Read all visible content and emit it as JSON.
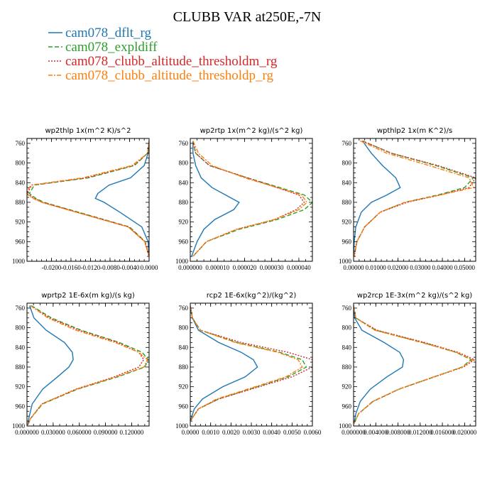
{
  "figure": {
    "title": "CLUBB VAR at250E,-7N"
  },
  "legend": [
    {
      "label": "cam078_dflt_rg",
      "color": "#1f77b4",
      "dash": "solid"
    },
    {
      "label": "cam078_expldiff",
      "color": "#2ca02c",
      "dash": "longdash"
    },
    {
      "label": "cam078_clubb_altitude_thresholdm_rg",
      "color": "#d62728",
      "dash": "dot"
    },
    {
      "label": "cam078_clubb_altitude_thresholdp_rg",
      "color": "#ff7f0e",
      "dash": "dashdot"
    }
  ],
  "chart_data": [
    {
      "type": "line",
      "title": "wp2thlp  1x(m^2 K)/s^2",
      "xlim": [
        -0.025,
        0.0
      ],
      "ylim": [
        1000,
        750
      ],
      "yscale": "linear",
      "y_ticks": [
        760,
        800,
        840,
        880,
        920,
        960,
        1000
      ],
      "x_ticks": [
        -0.02,
        -0.016,
        -0.012,
        -0.008,
        -0.004,
        0.0
      ],
      "x_tick_labels": [
        "-0.0200",
        "-0.0160",
        "-0.0120",
        "-0.0080",
        "-0.0040",
        "0.0000"
      ],
      "y": [
        755,
        780,
        805,
        830,
        845,
        862,
        872,
        880,
        900,
        930,
        960,
        990
      ],
      "series": [
        {
          "values": [
            0,
            -0.0002,
            -0.001,
            -0.0038,
            -0.0082,
            -0.0105,
            -0.011,
            -0.0092,
            -0.006,
            -0.0015,
            -0.0002,
            0
          ]
        },
        {
          "values": [
            0,
            -0.0003,
            -0.003,
            -0.0124,
            -0.0235,
            -0.0245,
            -0.0232,
            -0.0215,
            -0.0145,
            -0.004,
            -0.0008,
            0
          ]
        },
        {
          "values": [
            0,
            -0.0003,
            -0.0032,
            -0.0128,
            -0.024,
            -0.025,
            -0.0235,
            -0.0218,
            -0.0148,
            -0.0042,
            -0.0009,
            0
          ]
        },
        {
          "values": [
            0,
            -0.0003,
            -0.0035,
            -0.0135,
            -0.0242,
            -0.0252,
            -0.0238,
            -0.022,
            -0.015,
            -0.0043,
            -0.0009,
            0
          ]
        }
      ]
    },
    {
      "type": "line",
      "title": "wp2rtp  1x(m^2 kg)/(s^2 kg)",
      "xlim": [
        0.0,
        4.5e-05
      ],
      "ylim": [
        1000,
        750
      ],
      "yscale": "linear",
      "y_ticks": [
        760,
        800,
        840,
        880,
        920,
        960,
        1000
      ],
      "x_ticks": [
        0.0,
        1e-05,
        2e-05,
        3e-05,
        4e-05
      ],
      "x_tick_labels": [
        "0.000000",
        "0.000010",
        "0.000020",
        "0.000030",
        "0.000040"
      ],
      "y": [
        755,
        780,
        805,
        830,
        850,
        865,
        880,
        895,
        915,
        935,
        960,
        990
      ],
      "series": [
        {
          "values": [
            1e-06,
            1e-06,
            2e-06,
            4e-06,
            8e-06,
            1.3e-05,
            1.8e-05,
            1.6e-05,
            9e-06,
            5e-06,
            2.5e-06,
            5e-07
          ]
        },
        {
          "values": [
            1e-06,
            2e-06,
            7e-06,
            2.1e-05,
            3.3e-05,
            4.2e-05,
            4.5e-05,
            4.2e-05,
            3.2e-05,
            1.8e-05,
            6e-06,
            1e-06
          ]
        },
        {
          "values": [
            1e-06,
            2e-06,
            7e-06,
            2.1e-05,
            3.2e-05,
            4e-05,
            4.2e-05,
            3.9e-05,
            3.1e-05,
            1.7e-05,
            6e-06,
            1e-06
          ]
        },
        {
          "values": [
            1e-06,
            3e-06,
            8e-06,
            2e-05,
            3.2e-05,
            4.1e-05,
            4.3e-05,
            4e-05,
            3.1e-05,
            1.7e-05,
            6e-06,
            1e-06
          ]
        }
      ]
    },
    {
      "type": "line",
      "title": "wpthlp2  1x(m K^2)/s",
      "xlim": [
        0.0,
        0.055
      ],
      "ylim": [
        1000,
        750
      ],
      "yscale": "linear",
      "y_ticks": [
        760,
        800,
        840,
        880,
        920,
        960,
        1000
      ],
      "x_ticks": [
        0.0,
        0.01,
        0.02,
        0.03,
        0.04,
        0.05
      ],
      "x_tick_labels": [
        "0.00000",
        "0.01000",
        "0.02000",
        "0.03000",
        "0.04000",
        "0.05000"
      ],
      "y": [
        755,
        780,
        805,
        830,
        850,
        865,
        880,
        900,
        930,
        960,
        990
      ],
      "series": [
        {
          "values": [
            0.004,
            0.008,
            0.013,
            0.019,
            0.021,
            0.015,
            0.008,
            0.0035,
            0.001,
            0.0003,
            0.0001
          ]
        },
        {
          "values": [
            0.004,
            0.017,
            0.037,
            0.054,
            0.05,
            0.038,
            0.023,
            0.012,
            0.005,
            0.0015,
            0.0003
          ]
        },
        {
          "values": [
            0.004,
            0.017,
            0.038,
            0.055,
            0.052,
            0.039,
            0.024,
            0.012,
            0.005,
            0.0015,
            0.0003
          ]
        },
        {
          "values": [
            0.003,
            0.015,
            0.034,
            0.052,
            0.054,
            0.039,
            0.023,
            0.012,
            0.005,
            0.0015,
            0.0003
          ]
        }
      ]
    },
    {
      "type": "line",
      "title": "wprtp2  1E-6x(m kg)/(s kg)",
      "xlim": [
        0.0,
        0.14
      ],
      "ylim": [
        1000,
        750
      ],
      "yscale": "linear",
      "y_ticks": [
        760,
        800,
        840,
        880,
        920,
        960,
        1000
      ],
      "x_ticks": [
        0.0,
        0.03,
        0.06,
        0.09,
        0.12
      ],
      "x_tick_labels": [
        "0.000000",
        "0.030000",
        "0.060000",
        "0.090000",
        "0.120000"
      ],
      "y": [
        755,
        780,
        805,
        830,
        850,
        865,
        880,
        900,
        925,
        955,
        985,
        998
      ],
      "series": [
        {
          "values": [
            0.003,
            0.008,
            0.022,
            0.043,
            0.052,
            0.053,
            0.048,
            0.035,
            0.018,
            0.006,
            0.002,
            0.001
          ]
        },
        {
          "values": [
            0.005,
            0.028,
            0.062,
            0.106,
            0.132,
            0.139,
            0.135,
            0.104,
            0.058,
            0.018,
            0.004,
            0.001
          ]
        },
        {
          "values": [
            0.004,
            0.026,
            0.06,
            0.104,
            0.128,
            0.134,
            0.128,
            0.1,
            0.056,
            0.017,
            0.004,
            0.001
          ]
        },
        {
          "values": [
            0.004,
            0.024,
            0.056,
            0.101,
            0.128,
            0.138,
            0.134,
            0.102,
            0.057,
            0.017,
            0.004,
            0.001
          ]
        }
      ]
    },
    {
      "type": "line",
      "title": "rcp2  1E-6x(kg^2)/(kg^2)",
      "xlim": [
        0.0,
        0.006
      ],
      "ylim": [
        1000,
        750
      ],
      "yscale": "linear",
      "y_ticks": [
        760,
        800,
        840,
        880,
        920,
        960,
        1000
      ],
      "x_ticks": [
        0.0,
        0.001,
        0.002,
        0.003,
        0.004,
        0.005,
        0.006
      ],
      "x_tick_labels": [
        "0.0000",
        "0.0010",
        "0.0020",
        "0.0030",
        "0.0040",
        "0.0050",
        "0.0060"
      ],
      "y": [
        755,
        780,
        805,
        830,
        850,
        865,
        880,
        900,
        920,
        945,
        965,
        990
      ],
      "series": [
        {
          "values": [
            0.0,
            0.0001,
            0.0004,
            0.0014,
            0.0025,
            0.0031,
            0.0033,
            0.0027,
            0.0016,
            0.0006,
            0.0002,
            0.0
          ]
        },
        {
          "values": [
            0.0,
            0.0001,
            0.0005,
            0.0023,
            0.0044,
            0.0055,
            0.0057,
            0.0048,
            0.0033,
            0.0014,
            0.0004,
            0.0
          ]
        },
        {
          "values": [
            0.0,
            0.0001,
            0.0005,
            0.0025,
            0.0048,
            0.006,
            0.006,
            0.005,
            0.0034,
            0.0014,
            0.0004,
            0.0
          ]
        },
        {
          "values": [
            0.0,
            0.0001,
            0.0005,
            0.0022,
            0.0043,
            0.0053,
            0.0055,
            0.0047,
            0.0032,
            0.0013,
            0.0004,
            0.0
          ]
        }
      ]
    },
    {
      "type": "line",
      "title": "wp2rcp  1E-3x(m^2 kg)/(s^2 kg)",
      "xlim": [
        0.0,
        0.022
      ],
      "ylim": [
        1000,
        750
      ],
      "yscale": "linear",
      "y_ticks": [
        760,
        800,
        840,
        880,
        920,
        960,
        1000
      ],
      "x_ticks": [
        0.0,
        0.004,
        0.008,
        0.012,
        0.016,
        0.02
      ],
      "x_tick_labels": [
        "0.000000",
        "0.004000",
        "0.008000",
        "0.012000",
        "0.016000",
        "0.020000"
      ],
      "y": [
        755,
        780,
        805,
        830,
        850,
        865,
        880,
        900,
        925,
        950,
        975,
        995
      ],
      "series": [
        {
          "values": [
            0.0,
            0.0002,
            0.0015,
            0.0055,
            0.0083,
            0.009,
            0.0088,
            0.006,
            0.003,
            0.0012,
            0.0004,
            0.0001
          ]
        },
        {
          "values": [
            0.0,
            0.0004,
            0.004,
            0.0125,
            0.0184,
            0.0212,
            0.0195,
            0.0145,
            0.0082,
            0.0035,
            0.0009,
            0.0001
          ]
        },
        {
          "values": [
            0.0,
            0.0004,
            0.0042,
            0.0128,
            0.0188,
            0.0218,
            0.0198,
            0.0146,
            0.0082,
            0.0035,
            0.0009,
            0.0001
          ]
        },
        {
          "values": [
            0.0,
            0.0004,
            0.0038,
            0.0122,
            0.0185,
            0.0215,
            0.0196,
            0.0144,
            0.0081,
            0.0034,
            0.0009,
            0.0001
          ]
        }
      ]
    }
  ]
}
